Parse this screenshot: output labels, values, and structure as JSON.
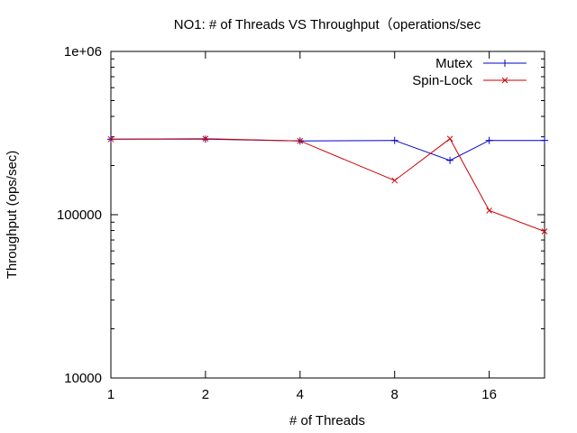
{
  "chart_data": {
    "type": "line",
    "title": "NO1: # of Threads VS Throughput（operations/sec",
    "xlabel": "# of Threads",
    "ylabel": "Throughput (ops/sec)",
    "x_scale": "log2",
    "y_scale": "log10",
    "xlim": [
      1,
      24
    ],
    "ylim": [
      10000,
      1000000
    ],
    "x_ticks": [
      {
        "value": 1,
        "label": "1"
      },
      {
        "value": 2,
        "label": "2"
      },
      {
        "value": 4,
        "label": "4"
      },
      {
        "value": 8,
        "label": "8"
      },
      {
        "value": 16,
        "label": "16"
      }
    ],
    "y_ticks": [
      {
        "value": 10000,
        "label": "10000"
      },
      {
        "value": 100000,
        "label": "100000"
      },
      {
        "value": 1000000,
        "label": "1e+06"
      }
    ],
    "grid": false,
    "legend_position": "top-right",
    "series": [
      {
        "name": "Mutex",
        "color": "#0000cc",
        "marker": "plus",
        "x": [
          1,
          2,
          4,
          8,
          12,
          16,
          24
        ],
        "y": [
          290000,
          290000,
          283000,
          285000,
          215000,
          285000,
          285000
        ]
      },
      {
        "name": "Spin-Lock",
        "color": "#cc0000",
        "marker": "cross",
        "x": [
          1,
          2,
          4,
          8,
          12,
          16,
          24
        ],
        "y": [
          290000,
          292000,
          283000,
          162000,
          292000,
          106000,
          79000
        ]
      }
    ]
  }
}
